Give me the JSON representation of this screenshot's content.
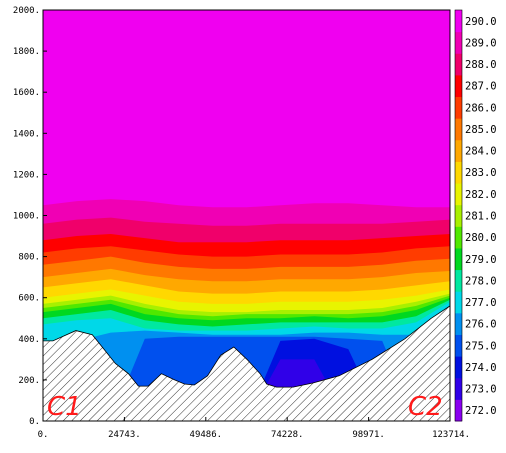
{
  "chart_data": {
    "type": "heatmap",
    "title": "",
    "xlabel": "",
    "ylabel": "",
    "xlim": [
      0,
      123714
    ],
    "ylim": [
      0,
      2000
    ],
    "x_tick_labels": [
      "0.",
      "24743.",
      "49486.",
      "74228.",
      "98971.",
      "123714."
    ],
    "x_tick_values": [
      0,
      24743,
      49486,
      74228,
      98971,
      123714
    ],
    "y_tick_labels": [
      "0.",
      "200.",
      "400.",
      "600.",
      "800.",
      "1000.",
      "1200.",
      "1400.",
      "1600.",
      "1800.",
      "2000."
    ],
    "y_tick_values": [
      0,
      200,
      400,
      600,
      800,
      1000,
      1200,
      1400,
      1600,
      1800,
      2000
    ],
    "corner_labels": {
      "left": "C1",
      "right": "C2"
    },
    "colorbar": {
      "labels": [
        "272.0",
        "273.0",
        "274.0",
        "275.0",
        "276.0",
        "277.0",
        "278.0",
        "279.0",
        "280.0",
        "281.0",
        "282.0",
        "283.0",
        "284.0",
        "285.0",
        "286.0",
        "287.0",
        "288.0",
        "289.0",
        "290.0"
      ],
      "colors": [
        "#8a00f0",
        "#3000e8",
        "#0010e0",
        "#0050ee",
        "#0090f0",
        "#00d8e8",
        "#00e8a0",
        "#00d820",
        "#50e800",
        "#a8f000",
        "#e8f400",
        "#ffd800",
        "#ffa800",
        "#ff7800",
        "#ff3c00",
        "#ff0000",
        "#f0006a",
        "#f000b4",
        "#f000f0"
      ]
    },
    "terrain": {
      "x": [
        0,
        3000,
        10000,
        15000,
        18000,
        22000,
        26000,
        29000,
        32000,
        36000,
        40000,
        43000,
        46000,
        50000,
        54000,
        58000,
        62000,
        66000,
        68000,
        71000,
        76000,
        82000,
        90000,
        100000,
        110000,
        118000,
        123714
      ],
      "y": [
        390,
        390,
        440,
        420,
        360,
        280,
        230,
        170,
        170,
        230,
        200,
        180,
        175,
        220,
        320,
        360,
        300,
        230,
        180,
        165,
        165,
        185,
        220,
        300,
        400,
        500,
        560
      ]
    },
    "isotherm_levels": [
      273,
      274,
      275,
      276,
      277,
      278,
      279,
      280,
      281,
      282,
      283,
      284,
      285,
      286,
      287,
      288,
      289,
      290
    ],
    "isotherm_heights": [
      [
        0,
        0,
        0,
        0,
        0,
        0,
        0,
        0,
        0,
        0,
        0,
        0,
        0
      ],
      [
        0,
        0,
        0,
        0,
        0,
        0,
        0,
        300,
        300,
        0,
        0,
        0,
        0
      ],
      [
        0,
        0,
        0,
        0,
        0,
        0,
        0,
        390,
        400,
        350,
        0,
        0,
        0
      ],
      [
        0,
        0,
        0,
        400,
        410,
        410,
        410,
        410,
        410,
        400,
        390,
        0,
        0
      ],
      [
        390,
        390,
        430,
        440,
        430,
        420,
        420,
        420,
        430,
        430,
        420,
        420,
        560
      ],
      [
        470,
        490,
        500,
        450,
        440,
        440,
        440,
        450,
        460,
        450,
        450,
        480,
        580
      ],
      [
        500,
        520,
        540,
        490,
        470,
        460,
        470,
        480,
        480,
        480,
        480,
        510,
        590
      ],
      [
        530,
        550,
        570,
        520,
        500,
        490,
        500,
        500,
        510,
        500,
        510,
        540,
        600
      ],
      [
        550,
        570,
        590,
        550,
        520,
        510,
        520,
        520,
        520,
        520,
        530,
        560,
        610
      ],
      [
        570,
        590,
        610,
        570,
        540,
        530,
        530,
        540,
        540,
        540,
        550,
        580,
        620
      ],
      [
        600,
        620,
        640,
        610,
        580,
        570,
        570,
        580,
        580,
        580,
        590,
        610,
        640
      ],
      [
        650,
        670,
        690,
        660,
        630,
        620,
        620,
        630,
        630,
        630,
        640,
        660,
        680
      ],
      [
        700,
        720,
        740,
        710,
        690,
        680,
        680,
        690,
        690,
        690,
        700,
        720,
        730
      ],
      [
        760,
        780,
        800,
        770,
        750,
        740,
        740,
        750,
        750,
        750,
        760,
        780,
        790
      ],
      [
        820,
        840,
        850,
        830,
        810,
        800,
        800,
        810,
        810,
        810,
        820,
        840,
        850
      ],
      [
        880,
        900,
        910,
        890,
        870,
        870,
        870,
        880,
        880,
        880,
        890,
        900,
        910
      ],
      [
        960,
        980,
        990,
        970,
        960,
        950,
        950,
        960,
        960,
        960,
        960,
        970,
        980
      ],
      [
        1050,
        1070,
        1080,
        1070,
        1050,
        1040,
        1040,
        1050,
        1060,
        1060,
        1050,
        1040,
        1040
      ]
    ]
  }
}
